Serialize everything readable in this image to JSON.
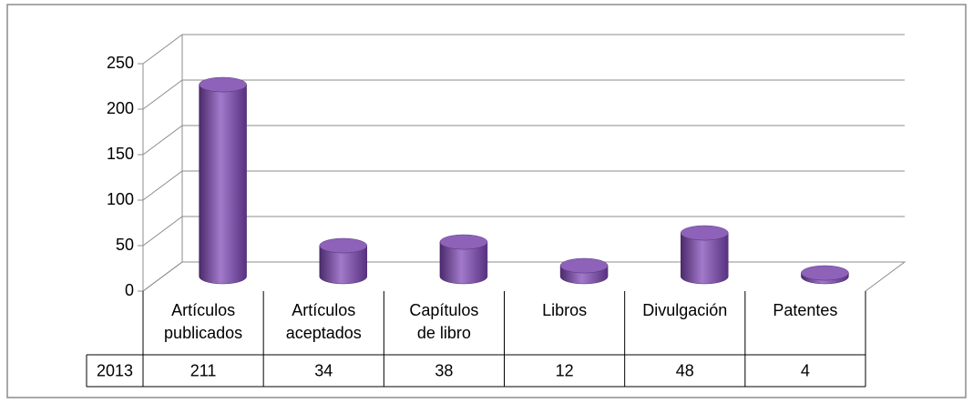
{
  "chart_data": {
    "type": "bar3d",
    "categories": [
      [
        "Artículos",
        "publicados"
      ],
      [
        "Artículos",
        "aceptados"
      ],
      [
        "Capítulos",
        "de libro"
      ],
      [
        "Libros"
      ],
      [
        "Divulgación"
      ],
      [
        "Patentes"
      ]
    ],
    "series": [
      {
        "name": "2013",
        "color": "#7b50a3",
        "values": [
          211,
          34,
          38,
          12,
          48,
          4
        ]
      }
    ],
    "ylim": [
      0,
      250
    ],
    "yticks": [
      0,
      50,
      100,
      150,
      200,
      250
    ],
    "grid": true
  }
}
